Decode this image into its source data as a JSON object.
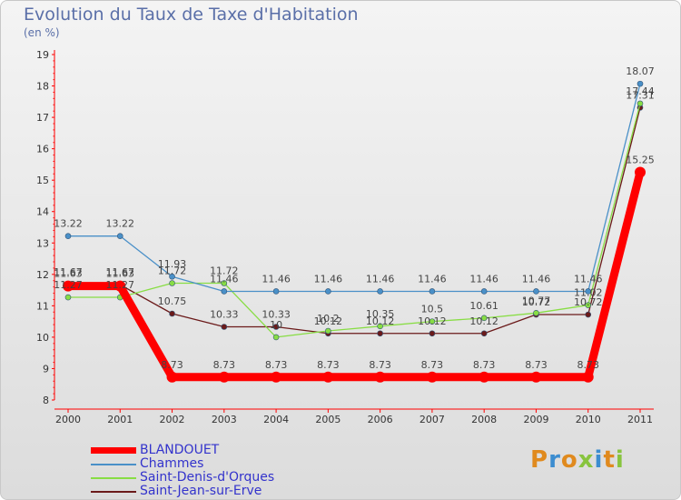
{
  "chart_data": {
    "type": "line",
    "title": "Evolution du Taux de Taxe d'Habitation",
    "unit": "(en %)",
    "x": [
      "2000",
      "2001",
      "2002",
      "2003",
      "2004",
      "2005",
      "2006",
      "2007",
      "2008",
      "2009",
      "2010",
      "2011"
    ],
    "ylim": [
      8,
      19
    ],
    "yticks": [
      "8",
      "9",
      "10",
      "11",
      "12",
      "13",
      "14",
      "15",
      "16",
      "17",
      "18",
      "19"
    ],
    "grid": false,
    "legend_position": "bottom-left",
    "series": [
      {
        "name": "BLANDOUET",
        "color": "#ff0000",
        "values": [
          11.63,
          11.63,
          8.73,
          8.73,
          8.73,
          8.73,
          8.73,
          8.73,
          8.73,
          8.73,
          8.73,
          15.25
        ],
        "labels": [
          "11.63",
          "11.63",
          "8.73",
          "8.73",
          "8.73",
          "8.73",
          "8.73",
          "8.73",
          "8.73",
          "8.73",
          "8.73",
          "15.25"
        ]
      },
      {
        "name": "Chammes",
        "color": "#4a90c8",
        "values": [
          13.22,
          13.22,
          11.93,
          11.46,
          11.46,
          11.46,
          11.46,
          11.46,
          11.46,
          11.46,
          11.46,
          18.07
        ],
        "labels": [
          "13.22",
          "13.22",
          "11.93",
          "11.46",
          "11.46",
          "11.46",
          "11.46",
          "11.46",
          "11.46",
          "11.46",
          "11.46",
          "18.07"
        ]
      },
      {
        "name": "Saint-Denis-d'Orques",
        "color": "#88dd44",
        "values": [
          11.27,
          11.27,
          11.72,
          11.72,
          10.0,
          10.2,
          10.35,
          10.5,
          10.61,
          10.77,
          11.02,
          17.44
        ],
        "labels": [
          "11.27",
          "11.27",
          "11.72",
          "11.72",
          "10",
          "10.2",
          "10.35",
          "10.5",
          "10.61",
          "10.77",
          "11.02",
          "17.44"
        ]
      },
      {
        "name": "Saint-Jean-sur-Erve",
        "color": "#6b1a1a",
        "values": [
          11.67,
          11.67,
          10.75,
          10.33,
          10.33,
          10.12,
          10.12,
          10.12,
          10.12,
          10.72,
          10.72,
          17.31
        ],
        "labels": [
          "11.67",
          "11.67",
          "10.75",
          "10.33",
          "10.33",
          "10.12",
          "10.12",
          "10.12",
          "10.12",
          "10.72",
          "10.72",
          "17.31"
        ]
      }
    ]
  },
  "logo_letters": [
    {
      "ch": "P",
      "color": "#e08a1e"
    },
    {
      "ch": "r",
      "color": "#3c8dd0"
    },
    {
      "ch": "o",
      "color": "#e08a1e"
    },
    {
      "ch": "x",
      "color": "#88c43e"
    },
    {
      "ch": "i",
      "color": "#3c8dd0"
    },
    {
      "ch": "t",
      "color": "#e08a1e"
    },
    {
      "ch": "i",
      "color": "#88c43e"
    }
  ]
}
